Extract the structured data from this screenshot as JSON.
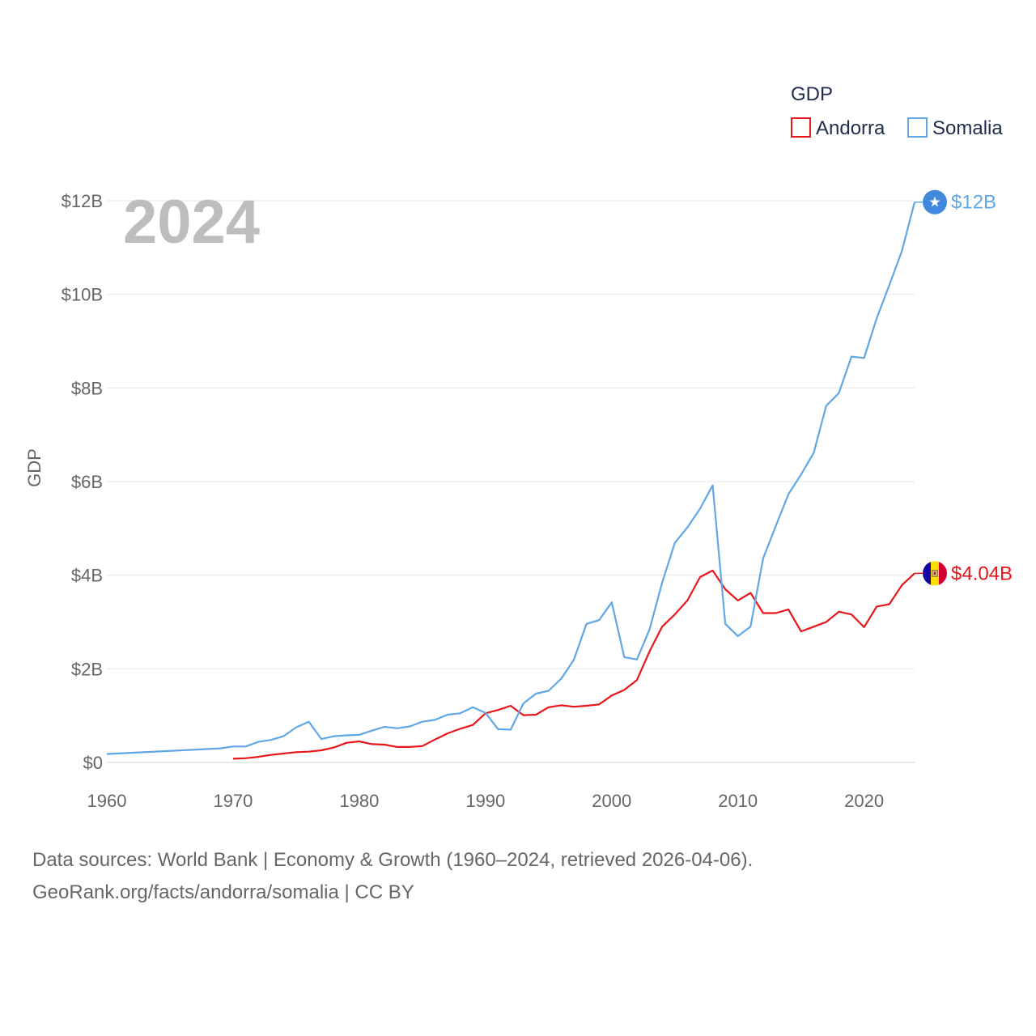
{
  "chart_data": {
    "type": "line",
    "title": "GDP",
    "year_label": "2024",
    "ylabel": "GDP",
    "xlabel": "",
    "xlim": [
      1960,
      2024
    ],
    "ylim": [
      0,
      12
    ],
    "x_ticks": [
      1960,
      1970,
      1980,
      1990,
      2000,
      2010,
      2020
    ],
    "y_ticks": [
      {
        "value": 0,
        "label": "$0"
      },
      {
        "value": 2,
        "label": "$2B"
      },
      {
        "value": 4,
        "label": "$4B"
      },
      {
        "value": 6,
        "label": "$6B"
      },
      {
        "value": 8,
        "label": "$8B"
      },
      {
        "value": 10,
        "label": "$10B"
      },
      {
        "value": 12,
        "label": "$12B"
      }
    ],
    "legend": {
      "title": "GDP",
      "placement": "top-right"
    },
    "series": [
      {
        "name": "Andorra",
        "color": "#e8161b",
        "end_label": "$4.04B",
        "x": [
          1970,
          1971,
          1972,
          1973,
          1974,
          1975,
          1976,
          1977,
          1978,
          1979,
          1980,
          1981,
          1982,
          1983,
          1984,
          1985,
          1986,
          1987,
          1988,
          1989,
          1990,
          1991,
          1992,
          1993,
          1994,
          1995,
          1996,
          1997,
          1998,
          1999,
          2000,
          2001,
          2002,
          2003,
          2004,
          2005,
          2006,
          2007,
          2008,
          2009,
          2010,
          2011,
          2012,
          2013,
          2014,
          2015,
          2016,
          2017,
          2018,
          2019,
          2020,
          2021,
          2022,
          2023,
          2024
        ],
        "values": [
          0.08,
          0.09,
          0.12,
          0.16,
          0.19,
          0.22,
          0.23,
          0.26,
          0.32,
          0.42,
          0.45,
          0.39,
          0.38,
          0.33,
          0.33,
          0.35,
          0.49,
          0.62,
          0.72,
          0.8,
          1.05,
          1.12,
          1.21,
          1.01,
          1.02,
          1.18,
          1.22,
          1.19,
          1.21,
          1.24,
          1.43,
          1.55,
          1.76,
          2.37,
          2.9,
          3.16,
          3.46,
          3.96,
          4.1,
          3.7,
          3.46,
          3.62,
          3.19,
          3.19,
          3.27,
          2.8,
          2.9,
          3.0,
          3.22,
          3.16,
          2.89,
          3.33,
          3.38,
          3.79,
          4.04
        ]
      },
      {
        "name": "Somalia",
        "color": "#61a6e5",
        "end_label": "$12B",
        "x": [
          1960,
          1969,
          1970,
          1971,
          1972,
          1973,
          1974,
          1975,
          1976,
          1977,
          1978,
          1979,
          1980,
          1981,
          1982,
          1983,
          1984,
          1985,
          1986,
          1987,
          1988,
          1989,
          1990,
          1991,
          1992,
          1993,
          1994,
          1995,
          1996,
          1997,
          1998,
          1999,
          2000,
          2001,
          2002,
          2003,
          2004,
          2005,
          2006,
          2007,
          2008,
          2009,
          2010,
          2011,
          2012,
          2013,
          2014,
          2015,
          2016,
          2017,
          2018,
          2019,
          2020,
          2021,
          2022,
          2023,
          2024
        ],
        "values": [
          0.18,
          0.3,
          0.34,
          0.34,
          0.44,
          0.48,
          0.56,
          0.75,
          0.87,
          0.5,
          0.56,
          0.58,
          0.59,
          0.68,
          0.76,
          0.73,
          0.77,
          0.87,
          0.91,
          1.02,
          1.05,
          1.18,
          1.06,
          0.71,
          0.7,
          1.26,
          1.47,
          1.53,
          1.79,
          2.19,
          2.96,
          3.04,
          3.42,
          2.25,
          2.2,
          2.84,
          3.84,
          4.69,
          5.02,
          5.42,
          5.92,
          2.96,
          2.7,
          2.9,
          4.36,
          5.05,
          5.73,
          6.15,
          6.61,
          7.62,
          7.89,
          8.67,
          8.64,
          9.49,
          10.2,
          10.93,
          11.97
        ]
      }
    ]
  },
  "source": {
    "line1": "Data sources: World Bank | Economy & Growth (1960–2024, retrieved 2026-04-06).",
    "line2": "GeoRank.org/facts/andorra/somalia | CC BY"
  }
}
